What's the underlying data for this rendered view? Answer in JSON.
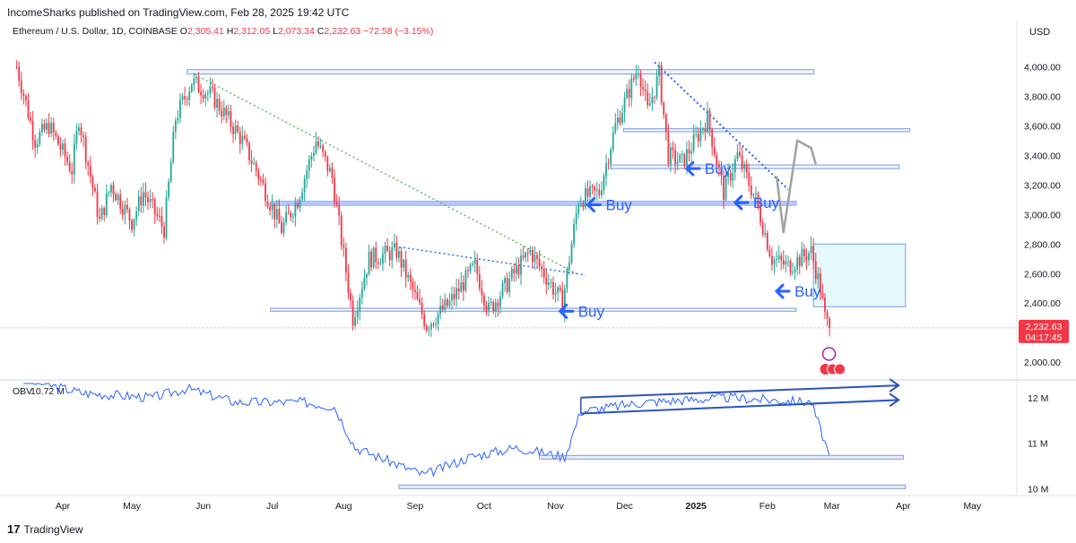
{
  "header": {
    "published": "IncomeSharks published on TradingView.com, Feb 28, 2025 19:42 UTC"
  },
  "symbol": {
    "name": "Ethereum / U.S. Dollar, 1D, COINBASE",
    "open_label": "O",
    "open": "2,305.41",
    "high_label": "H",
    "high": "2,312.05",
    "low_label": "L",
    "low": "2,073.34",
    "close_label": "C",
    "close": "2,232.63",
    "change": "−72.58 (−3.15%)"
  },
  "currency": "USD",
  "price_tag": {
    "value": "2,232.63",
    "countdown": "04:17:45"
  },
  "annotations": {
    "buy_label": "Buy",
    "obv_label": "OBV",
    "obv_value": "10.72 M"
  },
  "brand": {
    "name": "TradingView",
    "logo_mark": "17"
  },
  "colors": {
    "up": "#26a69a",
    "down": "#f23645",
    "accent": "#2962ff",
    "obv_line": "#2962ff"
  },
  "chart_data": [
    {
      "type": "candlestick",
      "symbol": "ETH/USD",
      "timeframe": "1D",
      "y_ticks": [
        "4,000.00",
        "3,800.00",
        "3,600.00",
        "3,400.00",
        "3,200.00",
        "3,000.00",
        "2,800.00",
        "2,600.00",
        "2,400.00",
        "2,000.00"
      ],
      "y_tick_values": [
        4000,
        3800,
        3600,
        3400,
        3200,
        3000,
        2800,
        2600,
        2400,
        2000
      ],
      "ylim": [
        1880,
        4160
      ],
      "x_ticks": [
        "Apr",
        "May",
        "Jun",
        "Jul",
        "Aug",
        "Sep",
        "Oct",
        "Nov",
        "Dec",
        "2025",
        "Feb",
        "Mar",
        "Apr",
        "May"
      ],
      "x_tick_dates": [
        "2024-04-01",
        "2024-05-01",
        "2024-06-01",
        "2024-07-01",
        "2024-08-01",
        "2024-09-01",
        "2024-10-01",
        "2024-11-01",
        "2024-12-01",
        "2025-01-01",
        "2025-02-01",
        "2025-03-01",
        "2025-04-01",
        "2025-05-01"
      ],
      "price_path": [
        {
          "date": "2024-03-12",
          "close": 4000
        },
        {
          "date": "2024-03-20",
          "close": 3500
        },
        {
          "date": "2024-03-26",
          "close": 3600
        },
        {
          "date": "2024-04-05",
          "close": 3300
        },
        {
          "date": "2024-04-08",
          "close": 3650
        },
        {
          "date": "2024-04-17",
          "close": 2950
        },
        {
          "date": "2024-04-22",
          "close": 3200
        },
        {
          "date": "2024-05-01",
          "close": 2950
        },
        {
          "date": "2024-05-06",
          "close": 3150
        },
        {
          "date": "2024-05-15",
          "close": 2900
        },
        {
          "date": "2024-05-20",
          "close": 3650
        },
        {
          "date": "2024-05-27",
          "close": 3900
        },
        {
          "date": "2024-06-05",
          "close": 3800
        },
        {
          "date": "2024-06-18",
          "close": 3500
        },
        {
          "date": "2024-06-24",
          "close": 3300
        },
        {
          "date": "2024-07-05",
          "close": 2900
        },
        {
          "date": "2024-07-12",
          "close": 3100
        },
        {
          "date": "2024-07-20",
          "close": 3500
        },
        {
          "date": "2024-07-27",
          "close": 3250
        },
        {
          "date": "2024-08-05",
          "close": 2300
        },
        {
          "date": "2024-08-12",
          "close": 2700
        },
        {
          "date": "2024-08-24",
          "close": 2750
        },
        {
          "date": "2024-09-06",
          "close": 2250
        },
        {
          "date": "2024-09-16",
          "close": 2400
        },
        {
          "date": "2024-09-27",
          "close": 2650
        },
        {
          "date": "2024-10-03",
          "close": 2350
        },
        {
          "date": "2024-10-14",
          "close": 2600
        },
        {
          "date": "2024-10-21",
          "close": 2750
        },
        {
          "date": "2024-10-31",
          "close": 2500
        },
        {
          "date": "2024-11-04",
          "close": 2400
        },
        {
          "date": "2024-11-11",
          "close": 3100
        },
        {
          "date": "2024-11-20",
          "close": 3150
        },
        {
          "date": "2024-11-27",
          "close": 3600
        },
        {
          "date": "2024-12-07",
          "close": 4000
        },
        {
          "date": "2024-12-11",
          "close": 3700
        },
        {
          "date": "2024-12-16",
          "close": 3950
        },
        {
          "date": "2024-12-20",
          "close": 3400
        },
        {
          "date": "2024-12-26",
          "close": 3350
        },
        {
          "date": "2025-01-06",
          "close": 3650
        },
        {
          "date": "2025-01-13",
          "close": 3150
        },
        {
          "date": "2025-01-19",
          "close": 3400
        },
        {
          "date": "2025-01-27",
          "close": 3100
        },
        {
          "date": "2025-02-03",
          "close": 2700
        },
        {
          "date": "2025-02-10",
          "close": 2650
        },
        {
          "date": "2025-02-20",
          "close": 2750
        },
        {
          "date": "2025-02-24",
          "close": 2500
        },
        {
          "date": "2025-02-26",
          "close": 2300
        },
        {
          "date": "2025-02-28",
          "close": 2232.63
        }
      ],
      "last_price": 2232.63
    },
    {
      "type": "line",
      "name": "OBV",
      "y_ticks": [
        "12 M",
        "11 M",
        "10 M"
      ],
      "y_tick_values": [
        12,
        11,
        10
      ],
      "ylim": [
        9.85,
        12.35
      ],
      "x": [
        "2024-03-15",
        "2024-04-10",
        "2024-05-10",
        "2024-05-25",
        "2024-06-15",
        "2024-07-15",
        "2024-07-28",
        "2024-08-06",
        "2024-09-05",
        "2024-09-25",
        "2024-10-15",
        "2024-11-05",
        "2024-11-12",
        "2024-12-10",
        "2025-01-15",
        "2025-02-20",
        "2025-02-28"
      ],
      "values": [
        12.4,
        12.1,
        12.0,
        12.2,
        11.9,
        11.9,
        11.8,
        10.9,
        10.3,
        10.7,
        10.9,
        10.7,
        11.7,
        11.9,
        12.0,
        11.9,
        10.72
      ]
    }
  ]
}
